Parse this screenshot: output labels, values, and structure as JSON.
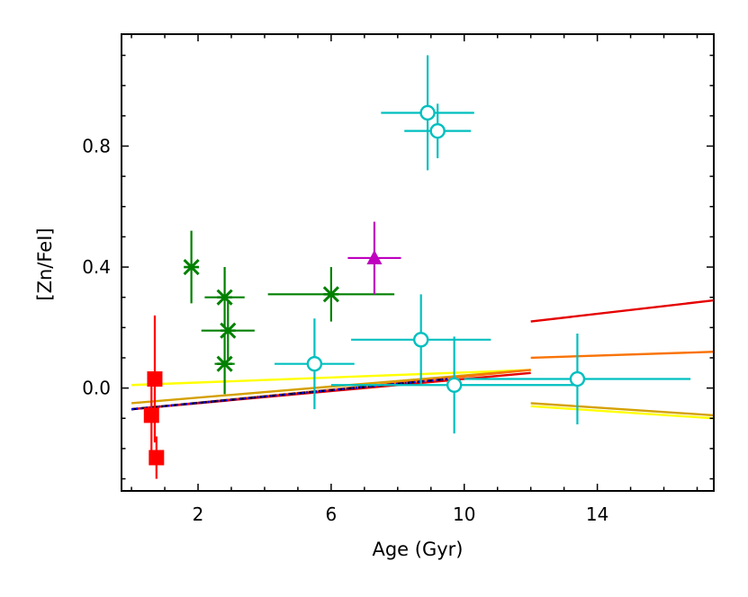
{
  "chart_data": {
    "type": "scatter",
    "title": "",
    "xlabel": "Age (Gyr)",
    "ylabel": "[Zn/FeI]",
    "xlim": [
      -0.3,
      17.5
    ],
    "ylim": [
      -0.34,
      1.17
    ],
    "xticks": [
      2,
      6,
      10,
      14
    ],
    "xtick_labels": [
      "2",
      "6",
      "10",
      "14"
    ],
    "yticks": [
      0.0,
      0.4,
      0.8
    ],
    "ytick_labels": [
      "0.0",
      "0.4",
      "0.8"
    ],
    "x_minor_step": 1,
    "y_minor_step": 0.1,
    "grid": false,
    "series": [
      {
        "name": "red squares",
        "marker": "square",
        "color": "#ff0000",
        "points": [
          {
            "x": 0.7,
            "y": 0.03,
            "xerr": 0,
            "yerr": 0.21
          },
          {
            "x": 0.6,
            "y": -0.09,
            "xerr": 0,
            "yerr": 0.12
          },
          {
            "x": 0.75,
            "y": -0.23,
            "xerr": 0,
            "yerr": 0.07
          }
        ]
      },
      {
        "name": "green stars",
        "marker": "x-star",
        "color": "#008000",
        "points": [
          {
            "x": 1.8,
            "y": 0.4,
            "xerr": 0,
            "yerr": 0.12
          },
          {
            "x": 2.8,
            "y": 0.3,
            "xerr": 0.6,
            "yerr": 0.1
          },
          {
            "x": 2.9,
            "y": 0.19,
            "xerr": 0.8,
            "yerr": 0.1
          },
          {
            "x": 2.8,
            "y": 0.08,
            "xerr": 0.3,
            "yerr": 0.1
          },
          {
            "x": 6.0,
            "y": 0.31,
            "xerr": 1.9,
            "yerr": 0.09
          }
        ]
      },
      {
        "name": "magenta triangle",
        "marker": "triangle",
        "color": "#bf00bf",
        "points": [
          {
            "x": 7.3,
            "y": 0.43,
            "xerr": 0.8,
            "yerr": 0.12
          }
        ]
      },
      {
        "name": "cyan circles",
        "marker": "circle-open",
        "color": "#00bfbf",
        "points": [
          {
            "x": 8.9,
            "y": 0.91,
            "xerr": 1.4,
            "yerr": 0.19
          },
          {
            "x": 9.2,
            "y": 0.85,
            "xerr": 1.0,
            "yerr": 0.09
          },
          {
            "x": 5.5,
            "y": 0.08,
            "xerr": 1.2,
            "yerr": 0.15
          },
          {
            "x": 8.7,
            "y": 0.16,
            "xerr": 2.1,
            "yerr": 0.15
          },
          {
            "x": 9.7,
            "y": 0.01,
            "xerr": 3.7,
            "yerr": 0.16
          },
          {
            "x": 13.4,
            "y": 0.03,
            "xerr": 3.4,
            "yerr": 0.15
          }
        ]
      }
    ],
    "lines": [
      {
        "name": "yellow-left",
        "color": "#ffff00",
        "style": "solid",
        "x": [
          0,
          12
        ],
        "y": [
          0.01,
          0.06
        ]
      },
      {
        "name": "gold-left",
        "color": "#d4a000",
        "style": "solid",
        "x": [
          0,
          12
        ],
        "y": [
          -0.05,
          0.06
        ]
      },
      {
        "name": "orange-left",
        "color": "#f97306",
        "style": "solid",
        "x": [
          0,
          12
        ],
        "y": [
          -0.07,
          0.06
        ]
      },
      {
        "name": "red-left",
        "color": "#e50000",
        "style": "solid",
        "x": [
          0,
          12
        ],
        "y": [
          -0.07,
          0.05
        ]
      },
      {
        "name": "black-dashed",
        "color": "#000000",
        "style": "dashed",
        "x": [
          0,
          9.5
        ],
        "y": [
          -0.07,
          0.03
        ]
      },
      {
        "name": "blue-dotted",
        "color": "#0000ff",
        "style": "dotted",
        "x": [
          0,
          9.5
        ],
        "y": [
          -0.07,
          0.03
        ]
      },
      {
        "name": "red-right",
        "color": "#e50000",
        "style": "solid",
        "x": [
          12,
          17.5
        ],
        "y": [
          0.22,
          0.29
        ]
      },
      {
        "name": "orange-right",
        "color": "#f97306",
        "style": "solid",
        "x": [
          12,
          17.5
        ],
        "y": [
          0.1,
          0.12
        ]
      },
      {
        "name": "yellow-right",
        "color": "#ffff00",
        "style": "solid",
        "x": [
          12,
          17.5
        ],
        "y": [
          -0.06,
          -0.1
        ]
      },
      {
        "name": "gold-right",
        "color": "#d4a000",
        "style": "solid",
        "x": [
          12,
          17.5
        ],
        "y": [
          -0.05,
          -0.09
        ]
      }
    ]
  }
}
